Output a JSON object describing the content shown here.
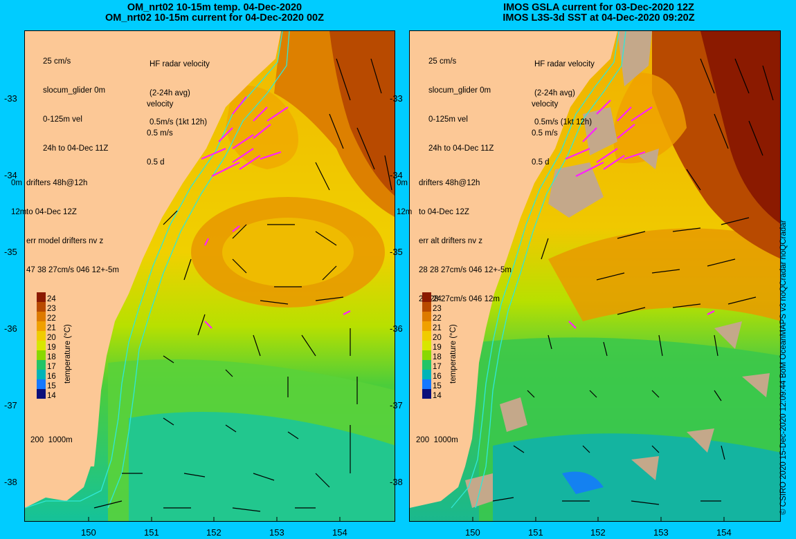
{
  "left_panel": {
    "title_line1": "OM_nrt02 10-15m temp. 04-Dec-2020",
    "title_line2": "OM_nrt02 10-15m current for 04-Dec-2020 00Z",
    "legend": [
      "25 cm/s",
      "slocum_glider 0m",
      "0-125m vel",
      "24h to 04-Dec 11Z"
    ],
    "hf_radar": [
      "HF radar velocity",
      "(2-24h avg)",
      "0.5m/s (1kt 12h)"
    ],
    "velocity": [
      "velocity",
      "0.5 m/s",
      "0.5 d"
    ],
    "drifters": [
      "drifters 48h@12h",
      "to 04-Dec 12Z",
      "err model drifters nv z",
      "47 38 27cm/s 046 12+-5m"
    ],
    "drifter_depth": [
      "0m",
      "12m"
    ],
    "isobath": "200  1000m"
  },
  "right_panel": {
    "title_line1": "IMOS GSLA current for 03-Dec-2020 12Z",
    "title_line2": "IMOS L3S-3d SST at 04-Dec-2020 09:20Z",
    "legend": [
      "25 cm/s",
      "slocum_glider 0m",
      "0-125m vel",
      "24h to 04-Dec 11Z"
    ],
    "hf_radar": [
      "HF radar velocity",
      "(2-24h avg)",
      "0.5m/s (1kt 12h)"
    ],
    "velocity": [
      "velocity",
      "0.5 m/s",
      "0.5 d"
    ],
    "drifters": [
      "drifters 48h@12h",
      "to 04-Dec 12Z",
      "err alt drifters nv z",
      "28 28 27cm/s 046 12+-5m",
      "28 28 27cm/s 046 12m"
    ],
    "drifter_depth": [
      "0m",
      "12m"
    ],
    "isobath": "200  1000m"
  },
  "colorbar": {
    "label": "temperature (°C)",
    "ticks": [
      "24",
      "23",
      "22",
      "21",
      "20",
      "19",
      "18",
      "17",
      "16",
      "15",
      "14"
    ],
    "colors": [
      "#8b1a00",
      "#b84a00",
      "#dd7a00",
      "#f0a000",
      "#f0cc00",
      "#d8e600",
      "#8ad800",
      "#22c466",
      "#00b4b8",
      "#1478ff",
      "#0a0f7a"
    ]
  },
  "axes": {
    "lat_ticks": [
      "-33",
      "-34",
      "-35",
      "-36",
      "-37",
      "-38"
    ],
    "lon_ticks": [
      "150",
      "151",
      "152",
      "153",
      "154"
    ]
  },
  "credit": "© CSIRO 2020   15-Dec-2020 12:09:44 BoM OceanMAPS v3 noQCradar noQCradar",
  "colors": {
    "background": "#00ccff",
    "land": "#fcc896",
    "cloud": "#c4a88a",
    "drifter": "#ff20ff",
    "glider": "#0000ff",
    "isobath": "#30e8d8"
  }
}
